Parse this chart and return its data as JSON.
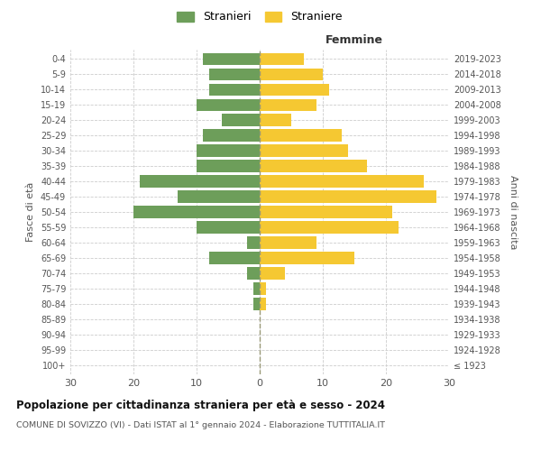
{
  "age_groups": [
    "100+",
    "95-99",
    "90-94",
    "85-89",
    "80-84",
    "75-79",
    "70-74",
    "65-69",
    "60-64",
    "55-59",
    "50-54",
    "45-49",
    "40-44",
    "35-39",
    "30-34",
    "25-29",
    "20-24",
    "15-19",
    "10-14",
    "5-9",
    "0-4"
  ],
  "birth_years": [
    "≤ 1923",
    "1924-1928",
    "1929-1933",
    "1934-1938",
    "1939-1943",
    "1944-1948",
    "1949-1953",
    "1954-1958",
    "1959-1963",
    "1964-1968",
    "1969-1973",
    "1974-1978",
    "1979-1983",
    "1984-1988",
    "1989-1993",
    "1994-1998",
    "1999-2003",
    "2004-2008",
    "2009-2013",
    "2014-2018",
    "2019-2023"
  ],
  "males": [
    0,
    0,
    0,
    0,
    1,
    1,
    2,
    8,
    2,
    10,
    20,
    13,
    19,
    10,
    10,
    9,
    6,
    10,
    8,
    8,
    9
  ],
  "females": [
    0,
    0,
    0,
    0,
    1,
    1,
    4,
    15,
    9,
    22,
    21,
    28,
    26,
    17,
    14,
    13,
    5,
    9,
    11,
    10,
    7
  ],
  "male_color": "#6d9e5a",
  "female_color": "#f5c832",
  "grid_color": "#cccccc",
  "title": "Popolazione per cittadinanza straniera per età e sesso - 2024",
  "subtitle": "COMUNE DI SOVIZZO (VI) - Dati ISTAT al 1° gennaio 2024 - Elaborazione TUTTITALIA.IT",
  "xlabel_right": "Femmine",
  "ylabel_left": "Fasce di età",
  "ylabel_right": "Anni di nascita",
  "legend_stranieri": "Stranieri",
  "legend_straniere": "Straniere",
  "xlim": 30,
  "bar_height": 0.78
}
